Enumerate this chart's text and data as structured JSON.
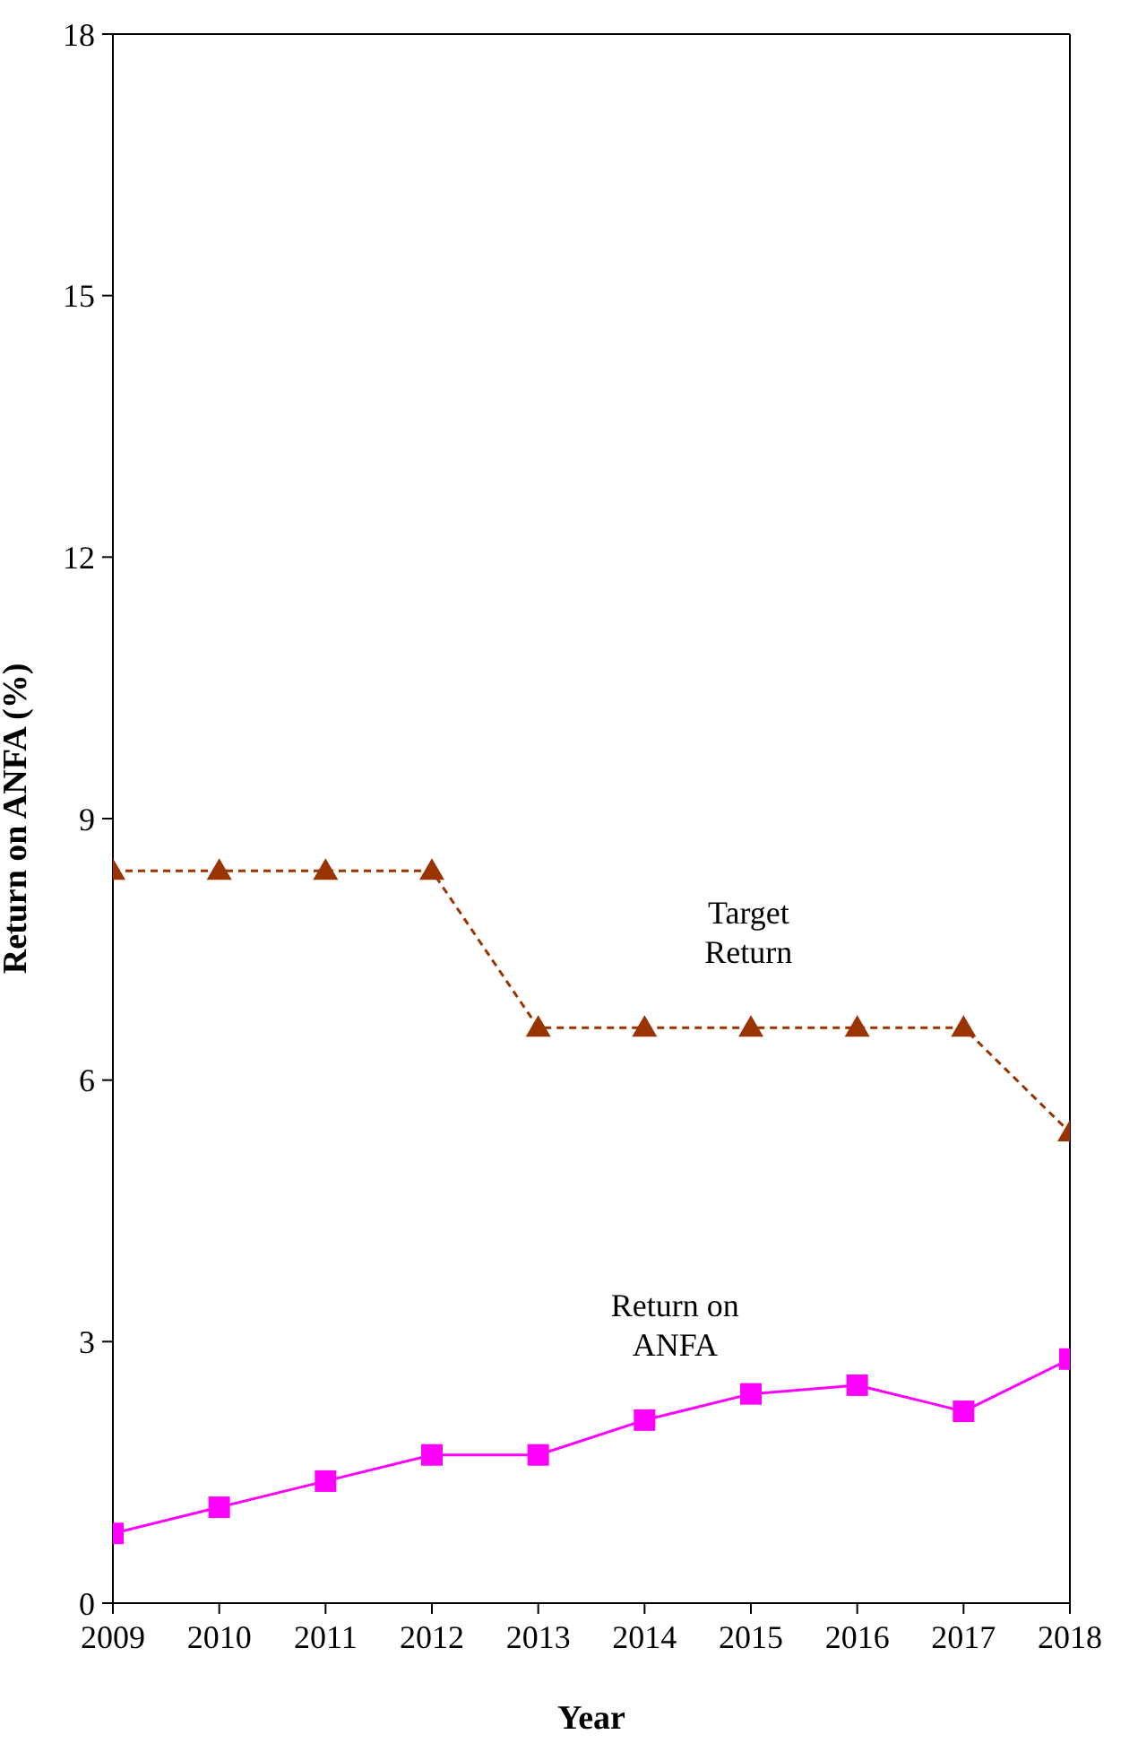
{
  "chart_data": {
    "type": "line",
    "xlabel": "Year",
    "ylabel": "Return on ANFA (%)",
    "x": [
      2009,
      2010,
      2011,
      2012,
      2013,
      2014,
      2015,
      2016,
      2017,
      2018
    ],
    "xlim": [
      2009,
      2018
    ],
    "xticks": [
      2009,
      2010,
      2011,
      2012,
      2013,
      2014,
      2015,
      2016,
      2017,
      2018
    ],
    "ylim": [
      0,
      18
    ],
    "yticks": [
      0,
      3,
      6,
      9,
      12,
      15,
      18
    ],
    "series": [
      {
        "name": "Target Return",
        "color": "#993300",
        "line_style": "dashed",
        "marker": "triangle",
        "values": [
          8.4,
          8.4,
          8.4,
          8.4,
          6.6,
          6.6,
          6.6,
          6.6,
          6.6,
          5.4
        ]
      },
      {
        "name": "Return on ANFA",
        "color": "#ff00ff",
        "line_style": "solid",
        "marker": "square",
        "values": [
          0.8,
          1.1,
          1.4,
          1.7,
          1.7,
          2.1,
          2.4,
          2.5,
          2.2,
          2.8
        ]
      }
    ]
  }
}
